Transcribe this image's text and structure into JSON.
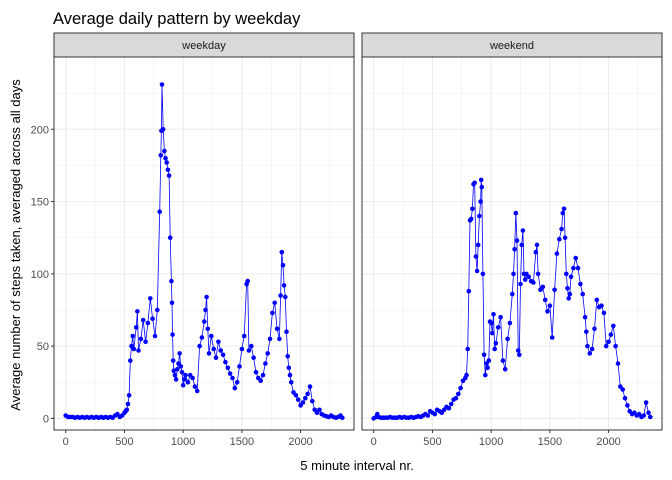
{
  "chart_data": {
    "type": "line",
    "title": "Average daily pattern by weekday",
    "xlabel": "5 minute interval nr.",
    "ylabel": "Average number of steps taken, averaged across all days",
    "xlim": [
      -100,
      2455
    ],
    "ylim": [
      -8,
      250
    ],
    "x_ticks": [
      0,
      500,
      1000,
      1500,
      2000
    ],
    "y_ticks": [
      0,
      50,
      100,
      150,
      200
    ],
    "grid": true,
    "line_color": "#0000ff",
    "panel_border_color": "#333333",
    "strip_fill": "#d9d9d9",
    "gridline_color": "#ebebeb",
    "facets": [
      {
        "name": "weekday",
        "points": [
          [
            0,
            2
          ],
          [
            20,
            1
          ],
          [
            40,
            1
          ],
          [
            60,
            1
          ],
          [
            80,
            0.5
          ],
          [
            100,
            1
          ],
          [
            120,
            0.5
          ],
          [
            140,
            1
          ],
          [
            160,
            0.5
          ],
          [
            180,
            1
          ],
          [
            200,
            0.5
          ],
          [
            220,
            1
          ],
          [
            240,
            0.5
          ],
          [
            260,
            1
          ],
          [
            280,
            0.5
          ],
          [
            300,
            1
          ],
          [
            320,
            0.5
          ],
          [
            340,
            1
          ],
          [
            360,
            0.5
          ],
          [
            380,
            1
          ],
          [
            400,
            0.5
          ],
          [
            420,
            2
          ],
          [
            440,
            3
          ],
          [
            460,
            1
          ],
          [
            480,
            2
          ],
          [
            500,
            4
          ],
          [
            510,
            5
          ],
          [
            520,
            6
          ],
          [
            530,
            10
          ],
          [
            540,
            16
          ],
          [
            550,
            40
          ],
          [
            560,
            50
          ],
          [
            570,
            57
          ],
          [
            580,
            48
          ],
          [
            600,
            63
          ],
          [
            610,
            74
          ],
          [
            620,
            47
          ],
          [
            640,
            55
          ],
          [
            660,
            68
          ],
          [
            680,
            53
          ],
          [
            700,
            66
          ],
          [
            720,
            83
          ],
          [
            740,
            69
          ],
          [
            760,
            57
          ],
          [
            780,
            75
          ],
          [
            800,
            143
          ],
          [
            810,
            182
          ],
          [
            815,
            199
          ],
          [
            820,
            231
          ],
          [
            830,
            200
          ],
          [
            840,
            185
          ],
          [
            850,
            180
          ],
          [
            860,
            177
          ],
          [
            870,
            172
          ],
          [
            880,
            168
          ],
          [
            890,
            125
          ],
          [
            900,
            95
          ],
          [
            905,
            80
          ],
          [
            910,
            58
          ],
          [
            915,
            40
          ],
          [
            920,
            33
          ],
          [
            930,
            30
          ],
          [
            940,
            27
          ],
          [
            950,
            34
          ],
          [
            960,
            38
          ],
          [
            970,
            45
          ],
          [
            980,
            36
          ],
          [
            990,
            32
          ],
          [
            1000,
            23
          ],
          [
            1010,
            27
          ],
          [
            1020,
            30
          ],
          [
            1040,
            25
          ],
          [
            1060,
            30
          ],
          [
            1080,
            28
          ],
          [
            1100,
            22
          ],
          [
            1120,
            19
          ],
          [
            1140,
            50
          ],
          [
            1160,
            56
          ],
          [
            1180,
            67
          ],
          [
            1190,
            75
          ],
          [
            1200,
            84
          ],
          [
            1210,
            62
          ],
          [
            1220,
            45
          ],
          [
            1240,
            57
          ],
          [
            1260,
            48
          ],
          [
            1280,
            42
          ],
          [
            1300,
            53
          ],
          [
            1320,
            47
          ],
          [
            1340,
            44
          ],
          [
            1360,
            39
          ],
          [
            1380,
            35
          ],
          [
            1400,
            31
          ],
          [
            1420,
            28
          ],
          [
            1440,
            21
          ],
          [
            1460,
            25
          ],
          [
            1480,
            36
          ],
          [
            1500,
            48
          ],
          [
            1520,
            57
          ],
          [
            1540,
            93
          ],
          [
            1550,
            95
          ],
          [
            1560,
            47
          ],
          [
            1580,
            50
          ],
          [
            1600,
            42
          ],
          [
            1620,
            32
          ],
          [
            1640,
            28
          ],
          [
            1660,
            26
          ],
          [
            1680,
            30
          ],
          [
            1700,
            38
          ],
          [
            1720,
            45
          ],
          [
            1740,
            55
          ],
          [
            1760,
            73
          ],
          [
            1780,
            80
          ],
          [
            1800,
            62
          ],
          [
            1820,
            55
          ],
          [
            1830,
            85
          ],
          [
            1840,
            115
          ],
          [
            1850,
            106
          ],
          [
            1860,
            92
          ],
          [
            1870,
            84
          ],
          [
            1880,
            60
          ],
          [
            1890,
            43
          ],
          [
            1900,
            35
          ],
          [
            1910,
            30
          ],
          [
            1920,
            25
          ],
          [
            1940,
            18
          ],
          [
            1960,
            16
          ],
          [
            1980,
            13
          ],
          [
            2000,
            9
          ],
          [
            2020,
            11
          ],
          [
            2040,
            14
          ],
          [
            2060,
            17
          ],
          [
            2080,
            22
          ],
          [
            2100,
            12
          ],
          [
            2120,
            6
          ],
          [
            2140,
            4
          ],
          [
            2160,
            6
          ],
          [
            2180,
            3
          ],
          [
            2200,
            2
          ],
          [
            2220,
            1.5
          ],
          [
            2240,
            1
          ],
          [
            2260,
            2
          ],
          [
            2280,
            1
          ],
          [
            2300,
            0.5
          ],
          [
            2320,
            1
          ],
          [
            2340,
            2
          ],
          [
            2355,
            0.5
          ]
        ]
      },
      {
        "name": "weekend",
        "points": [
          [
            0,
            0
          ],
          [
            20,
            1
          ],
          [
            30,
            3
          ],
          [
            40,
            1
          ],
          [
            60,
            0.5
          ],
          [
            80,
            0.5
          ],
          [
            100,
            0.5
          ],
          [
            120,
            0.5
          ],
          [
            140,
            1
          ],
          [
            160,
            0.5
          ],
          [
            180,
            0.5
          ],
          [
            200,
            0.5
          ],
          [
            220,
            1
          ],
          [
            240,
            0.5
          ],
          [
            260,
            1
          ],
          [
            280,
            0.5
          ],
          [
            300,
            0.5
          ],
          [
            320,
            1
          ],
          [
            340,
            0.5
          ],
          [
            360,
            1
          ],
          [
            380,
            1.5
          ],
          [
            400,
            1
          ],
          [
            420,
            2
          ],
          [
            440,
            3
          ],
          [
            460,
            2
          ],
          [
            480,
            5
          ],
          [
            500,
            4
          ],
          [
            520,
            3
          ],
          [
            540,
            6
          ],
          [
            560,
            5
          ],
          [
            580,
            4
          ],
          [
            600,
            6
          ],
          [
            620,
            8
          ],
          [
            640,
            7
          ],
          [
            660,
            10
          ],
          [
            680,
            13
          ],
          [
            700,
            14
          ],
          [
            720,
            17
          ],
          [
            740,
            21
          ],
          [
            760,
            26
          ],
          [
            780,
            28
          ],
          [
            790,
            30
          ],
          [
            800,
            48
          ],
          [
            810,
            88
          ],
          [
            820,
            137
          ],
          [
            830,
            138
          ],
          [
            840,
            145
          ],
          [
            850,
            162
          ],
          [
            860,
            163
          ],
          [
            870,
            112
          ],
          [
            880,
            102
          ],
          [
            890,
            120
          ],
          [
            900,
            140
          ],
          [
            910,
            150
          ],
          [
            915,
            165
          ],
          [
            920,
            160
          ],
          [
            930,
            100
          ],
          [
            940,
            44
          ],
          [
            950,
            30
          ],
          [
            960,
            38
          ],
          [
            970,
            35
          ],
          [
            980,
            40
          ],
          [
            990,
            67
          ],
          [
            1000,
            66
          ],
          [
            1010,
            59
          ],
          [
            1020,
            72
          ],
          [
            1030,
            48
          ],
          [
            1040,
            52
          ],
          [
            1060,
            63
          ],
          [
            1080,
            70
          ],
          [
            1100,
            40
          ],
          [
            1120,
            34
          ],
          [
            1140,
            55
          ],
          [
            1160,
            66
          ],
          [
            1180,
            86
          ],
          [
            1190,
            100
          ],
          [
            1200,
            117
          ],
          [
            1210,
            142
          ],
          [
            1220,
            123
          ],
          [
            1230,
            47
          ],
          [
            1240,
            44
          ],
          [
            1250,
            93
          ],
          [
            1260,
            120
          ],
          [
            1270,
            130
          ],
          [
            1280,
            100
          ],
          [
            1290,
            96
          ],
          [
            1300,
            100
          ],
          [
            1320,
            98
          ],
          [
            1340,
            95
          ],
          [
            1360,
            94
          ],
          [
            1380,
            115
          ],
          [
            1390,
            120
          ],
          [
            1400,
            100
          ],
          [
            1420,
            89
          ],
          [
            1440,
            91
          ],
          [
            1460,
            82
          ],
          [
            1480,
            74
          ],
          [
            1500,
            78
          ],
          [
            1520,
            56
          ],
          [
            1540,
            89
          ],
          [
            1560,
            114
          ],
          [
            1580,
            124
          ],
          [
            1600,
            131
          ],
          [
            1610,
            142
          ],
          [
            1620,
            145
          ],
          [
            1630,
            125
          ],
          [
            1640,
            100
          ],
          [
            1650,
            90
          ],
          [
            1660,
            83
          ],
          [
            1670,
            86
          ],
          [
            1680,
            98
          ],
          [
            1700,
            104
          ],
          [
            1720,
            111
          ],
          [
            1740,
            104
          ],
          [
            1760,
            93
          ],
          [
            1780,
            86
          ],
          [
            1800,
            70
          ],
          [
            1810,
            60
          ],
          [
            1820,
            50
          ],
          [
            1840,
            45
          ],
          [
            1860,
            48
          ],
          [
            1880,
            62
          ],
          [
            1900,
            82
          ],
          [
            1920,
            77
          ],
          [
            1940,
            78
          ],
          [
            1960,
            73
          ],
          [
            1980,
            50
          ],
          [
            2000,
            53
          ],
          [
            2020,
            58
          ],
          [
            2040,
            64
          ],
          [
            2060,
            50
          ],
          [
            2080,
            38
          ],
          [
            2100,
            22
          ],
          [
            2120,
            20
          ],
          [
            2140,
            14
          ],
          [
            2160,
            9
          ],
          [
            2180,
            5
          ],
          [
            2200,
            3
          ],
          [
            2220,
            4
          ],
          [
            2240,
            2
          ],
          [
            2260,
            3
          ],
          [
            2280,
            1
          ],
          [
            2300,
            2
          ],
          [
            2320,
            11
          ],
          [
            2340,
            4
          ],
          [
            2355,
            1
          ]
        ]
      }
    ]
  }
}
